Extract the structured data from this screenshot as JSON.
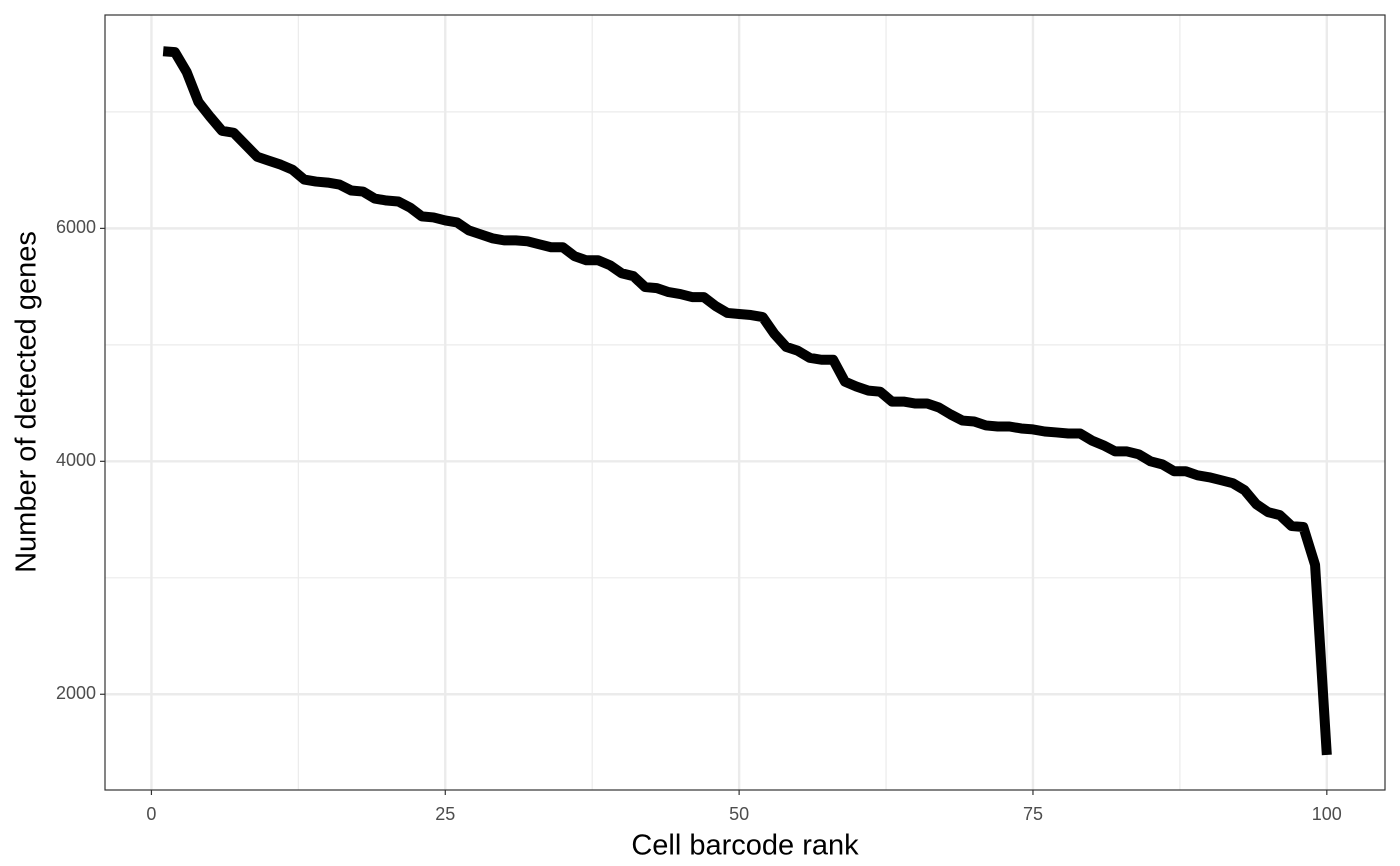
{
  "chart_data": {
    "type": "line",
    "xlabel": "Cell barcode rank",
    "ylabel": "Number of detected genes",
    "x": [
      1,
      2,
      3,
      4,
      5,
      6,
      7,
      8,
      9,
      10,
      11,
      12,
      13,
      14,
      15,
      16,
      17,
      18,
      19,
      20,
      21,
      22,
      23,
      24,
      25,
      26,
      27,
      28,
      29,
      30,
      31,
      32,
      33,
      34,
      35,
      36,
      37,
      38,
      39,
      40,
      41,
      42,
      43,
      44,
      45,
      46,
      47,
      48,
      49,
      50,
      51,
      52,
      53,
      54,
      55,
      56,
      57,
      58,
      59,
      60,
      61,
      62,
      63,
      64,
      65,
      66,
      67,
      68,
      69,
      70,
      71,
      72,
      73,
      74,
      75,
      76,
      77,
      78,
      79,
      80,
      81,
      82,
      83,
      84,
      85,
      86,
      87,
      88,
      89,
      90,
      91,
      92,
      93,
      94,
      95,
      96,
      97,
      98,
      99,
      100
    ],
    "series": [
      {
        "color": "#000000",
        "values": [
          7521,
          7513,
          7342,
          7085,
          6957,
          6838,
          6821,
          6718,
          6615,
          6581,
          6547,
          6504,
          6419,
          6402,
          6393,
          6376,
          6325,
          6316,
          6256,
          6239,
          6231,
          6179,
          6103,
          6094,
          6068,
          6051,
          5983,
          5949,
          5915,
          5897,
          5897,
          5889,
          5863,
          5838,
          5838,
          5761,
          5726,
          5726,
          5684,
          5615,
          5590,
          5496,
          5487,
          5453,
          5436,
          5410,
          5410,
          5333,
          5274,
          5265,
          5256,
          5239,
          5094,
          4983,
          4949,
          4889,
          4872,
          4872,
          4684,
          4641,
          4607,
          4598,
          4513,
          4513,
          4496,
          4496,
          4462,
          4402,
          4350,
          4342,
          4308,
          4299,
          4299,
          4282,
          4274,
          4256,
          4248,
          4239,
          4239,
          4179,
          4137,
          4085,
          4085,
          4060,
          4000,
          3974,
          3915,
          3915,
          3880,
          3863,
          3838,
          3812,
          3752,
          3632,
          3564,
          3538,
          3444,
          3436,
          3111,
          1479
        ]
      }
    ],
    "xlim": [
      -3.95,
      104.95
    ],
    "ylim": [
      1178,
      7832
    ],
    "xticks": [
      0,
      25,
      50,
      75,
      100
    ],
    "yticks": [
      2000,
      4000,
      6000
    ],
    "x_minor_grid": [
      12.5,
      37.5,
      62.5,
      87.5,
      112.5
    ],
    "y_minor_grid": [
      1000,
      3000,
      5000,
      7000
    ],
    "grid": true
  }
}
